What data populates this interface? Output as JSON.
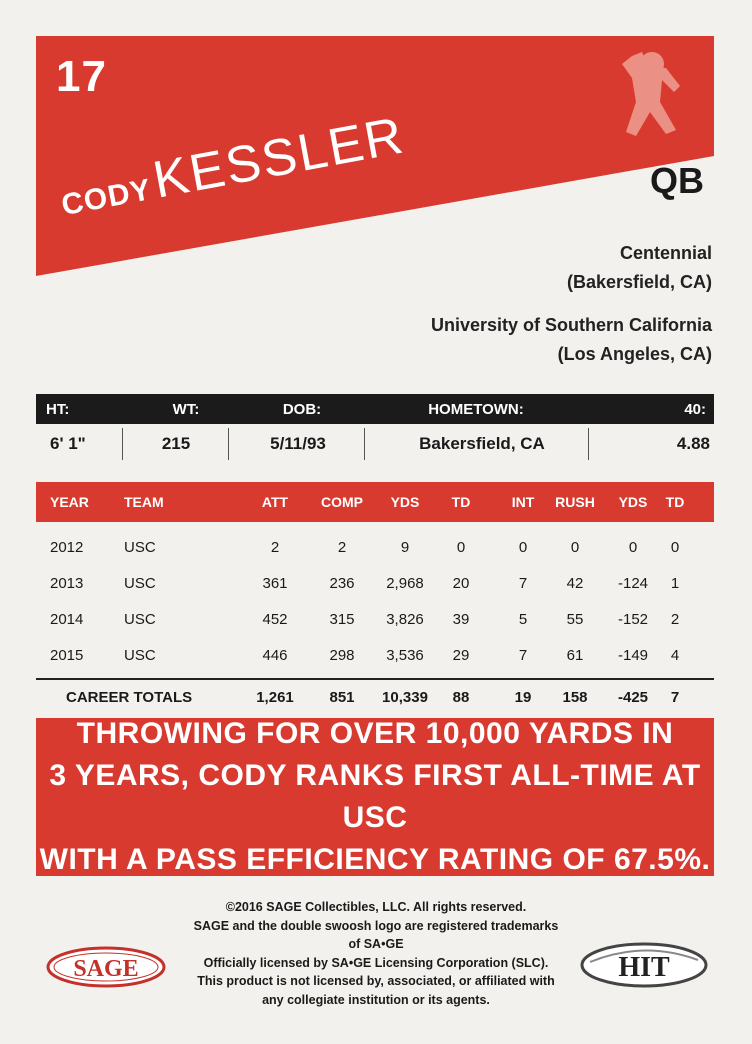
{
  "card": {
    "jersey_number": "17",
    "first_name": "CODY",
    "last_name": "KESSLER",
    "position": "QB",
    "high_school": "Centennial",
    "high_school_location": "(Bakersfield, CA)",
    "college": "University of Southern California",
    "college_location": "(Los Angeles, CA)"
  },
  "bio": {
    "headers": [
      "HT:",
      "WT:",
      "DOB:",
      "HOMETOWN:",
      "40:"
    ],
    "values": [
      "6' 1\"",
      "215",
      "5/11/93",
      "Bakersfield, CA",
      "4.88"
    ]
  },
  "stats": {
    "headers": [
      "YEAR",
      "TEAM",
      "ATT",
      "COMP",
      "YDS",
      "TD",
      "INT",
      "RUSH",
      "YDS",
      "TD"
    ],
    "rows": [
      [
        "2012",
        "USC",
        "2",
        "2",
        "9",
        "0",
        "0",
        "0",
        "0",
        "0"
      ],
      [
        "2013",
        "USC",
        "361",
        "236",
        "2,968",
        "20",
        "7",
        "42",
        "-124",
        "1"
      ],
      [
        "2014",
        "USC",
        "452",
        "315",
        "3,826",
        "39",
        "5",
        "55",
        "-152",
        "2"
      ],
      [
        "2015",
        "USC",
        "446",
        "298",
        "3,536",
        "29",
        "7",
        "61",
        "-149",
        "4"
      ]
    ],
    "totals": [
      "CAREER TOTALS",
      "1,261",
      "851",
      "10,339",
      "88",
      "19",
      "158",
      "-425",
      "7"
    ]
  },
  "blurb": {
    "line1": "THROWING FOR OVER 10,000 YARDS IN",
    "line2": "3 YEARS, CODY RANKS FIRST ALL-TIME AT USC",
    "line3": "WITH A PASS EFFICIENCY RATING OF 67.5%."
  },
  "legal": {
    "line1": "©2016 SAGE Collectibles, LLC.  All rights reserved.",
    "line2": "SAGE and the double swoosh logo are registered trademarks of SA•GE",
    "line3": "Officially licensed by SA•GE Licensing Corporation (SLC).",
    "line4": "This product is not licensed by, associated, or affiliated with",
    "line5": "any collegiate institution or its agents."
  },
  "logos": {
    "sage": "SAGE",
    "hit": "HIT"
  },
  "colors": {
    "accent_red": "#d93a30",
    "dark": "#1b1b1b",
    "background": "#f3f1ee"
  }
}
